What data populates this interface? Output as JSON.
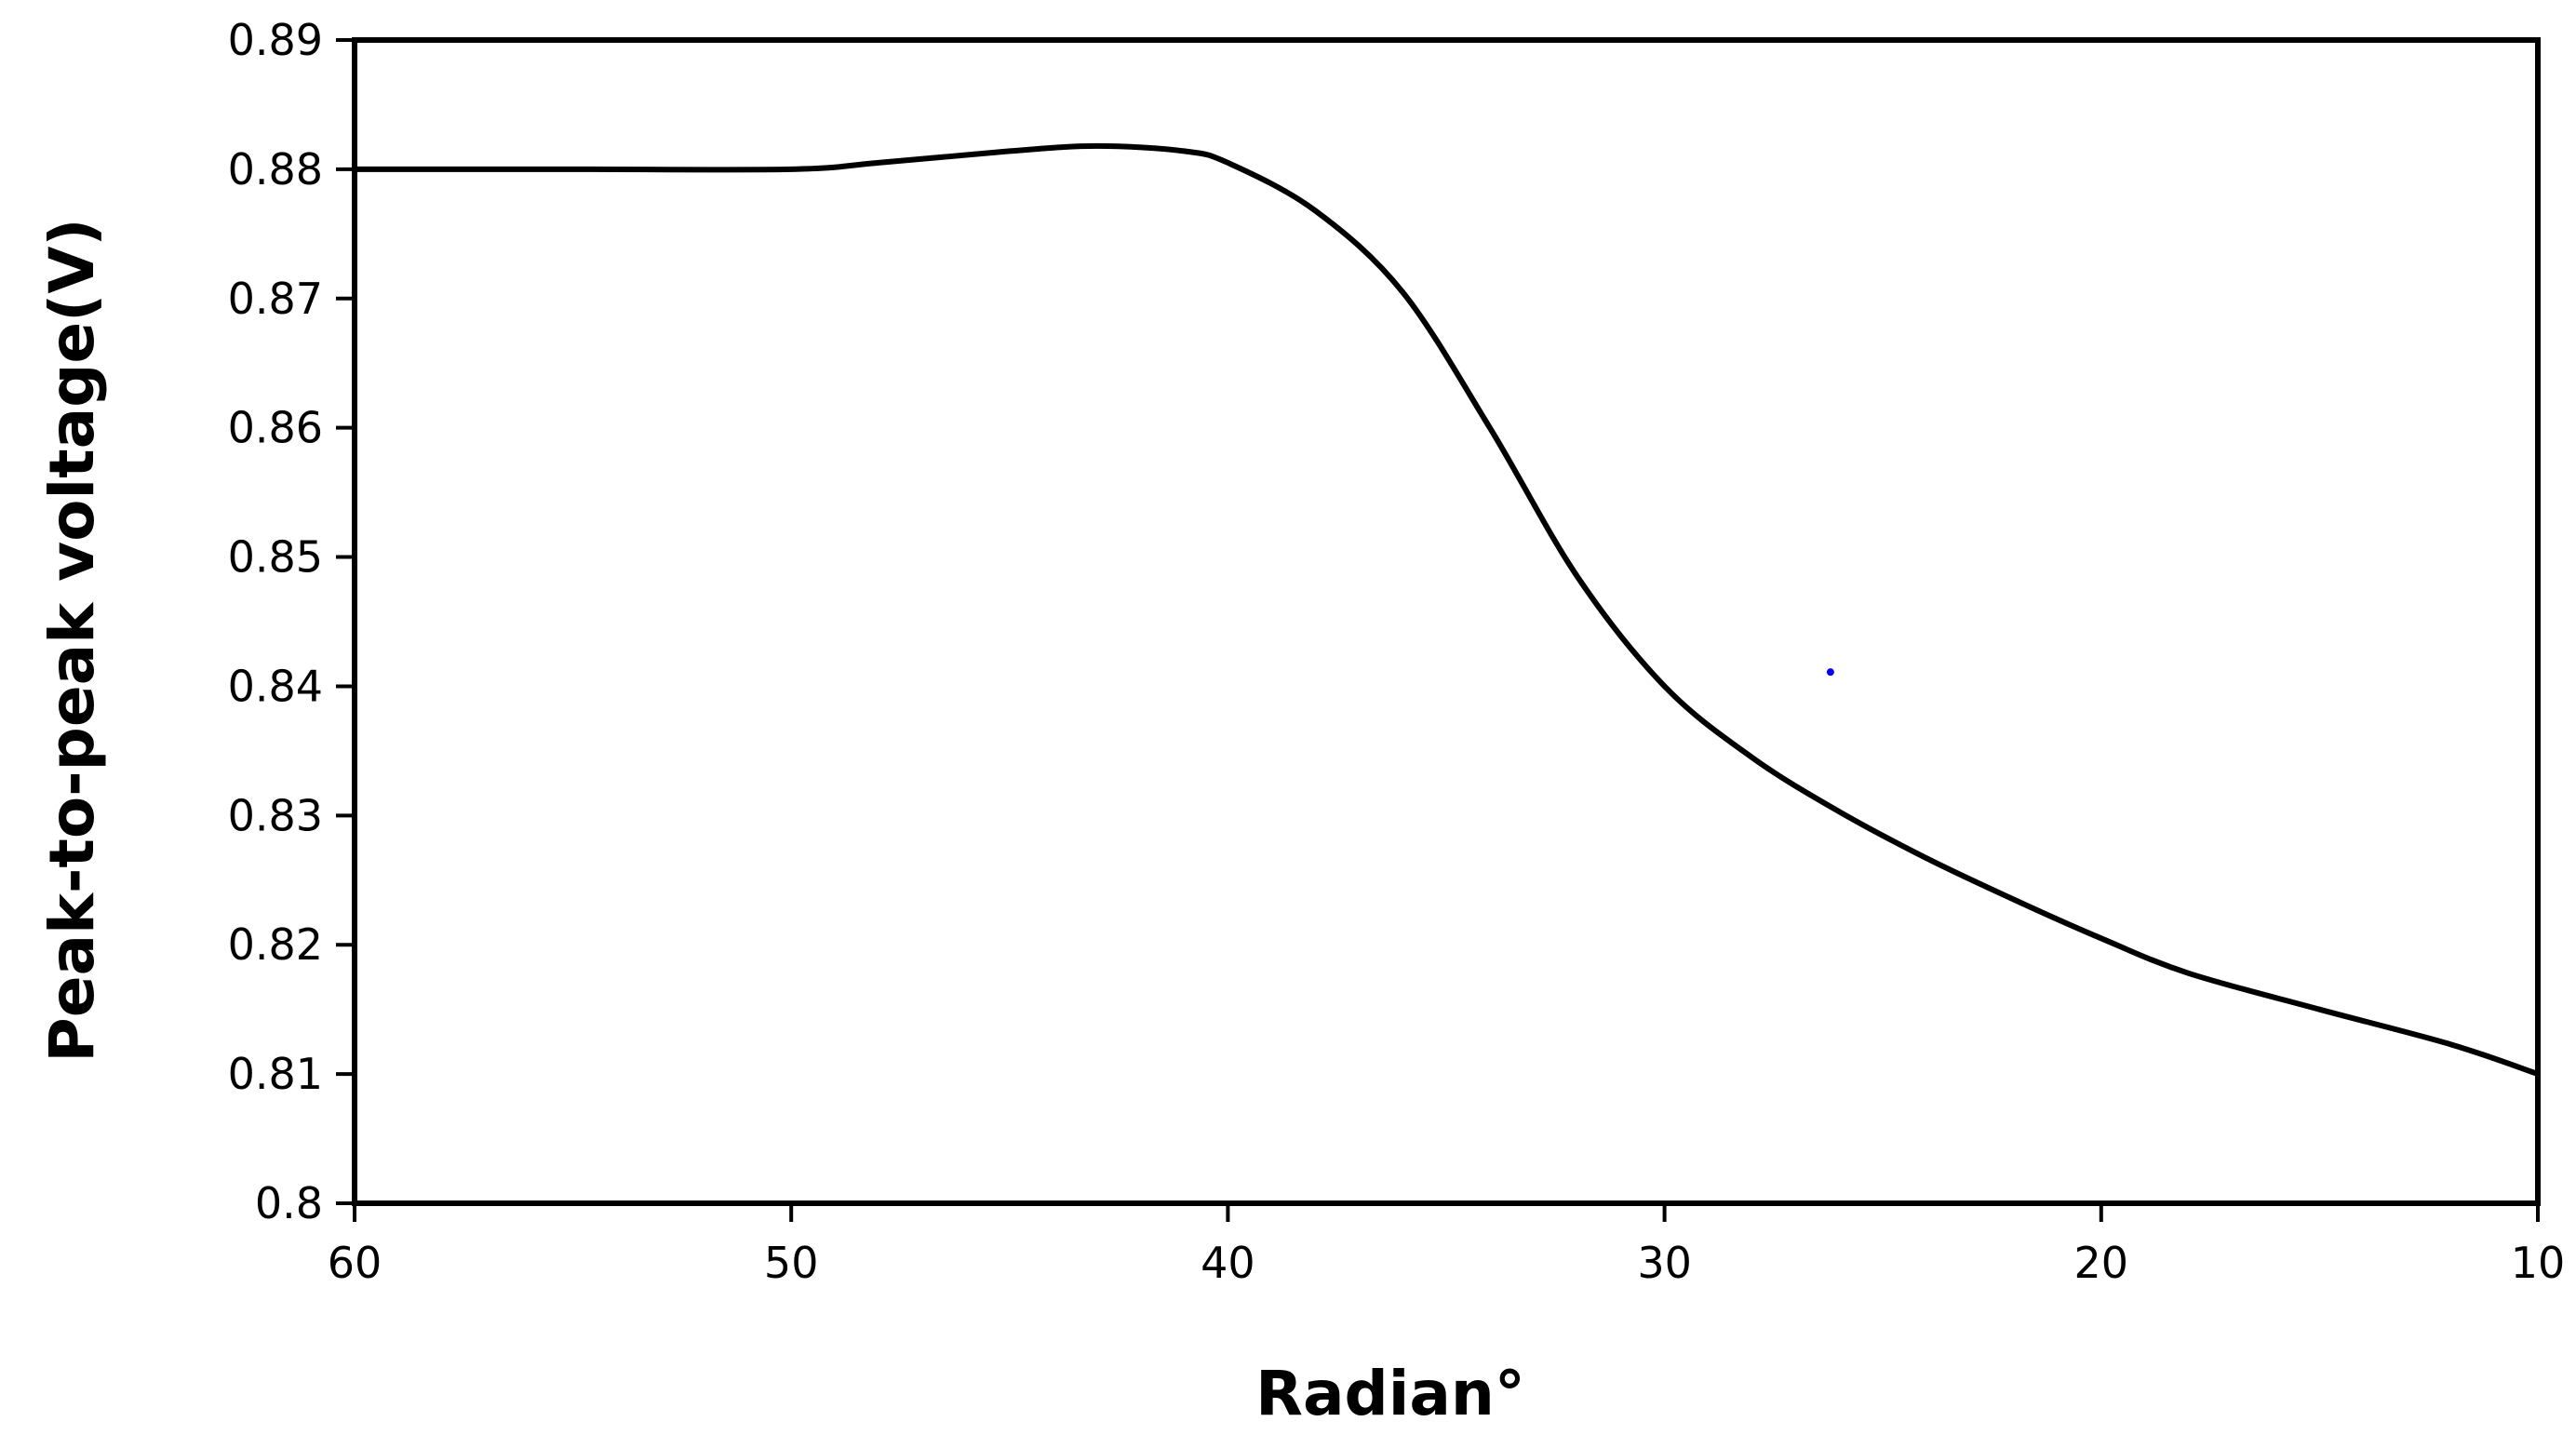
{
  "chart_data": {
    "type": "line",
    "title": "",
    "xlabel": "Radian°",
    "ylabel": "Peak-to-peak voltage(V)",
    "xlim": [
      60,
      10
    ],
    "ylim": [
      0.8,
      0.89
    ],
    "x_reversed": true,
    "x_ticks": [
      60,
      50,
      40,
      30,
      20,
      10
    ],
    "x_tick_labels": [
      "60",
      "50",
      "40",
      "30",
      "20",
      "10"
    ],
    "y_ticks": [
      0.8,
      0.81,
      0.82,
      0.83,
      0.84,
      0.85,
      0.86,
      0.87,
      0.88,
      0.89
    ],
    "y_tick_labels": [
      "0.8",
      "0.81",
      "0.82",
      "0.83",
      "0.84",
      "0.85",
      "0.86",
      "0.87",
      "0.88",
      "0.89"
    ],
    "grid": false,
    "legend": "none",
    "series": [
      {
        "color": "#000000",
        "x": [
          60,
          55,
          50,
          48,
          45,
          43,
          41,
          40,
          38,
          36,
          34,
          32,
          30,
          28,
          26,
          24,
          22,
          20,
          18,
          15,
          12,
          10
        ],
        "y": [
          0.88,
          0.88,
          0.88,
          0.8805,
          0.8814,
          0.8818,
          0.8814,
          0.8805,
          0.8768,
          0.8705,
          0.86,
          0.8485,
          0.84,
          0.8345,
          0.8303,
          0.8267,
          0.8235,
          0.8205,
          0.8178,
          0.815,
          0.8123,
          0.81
        ]
      }
    ],
    "marker": {
      "x": 26.2,
      "y": 0.8411,
      "color": "#0000ff"
    }
  }
}
